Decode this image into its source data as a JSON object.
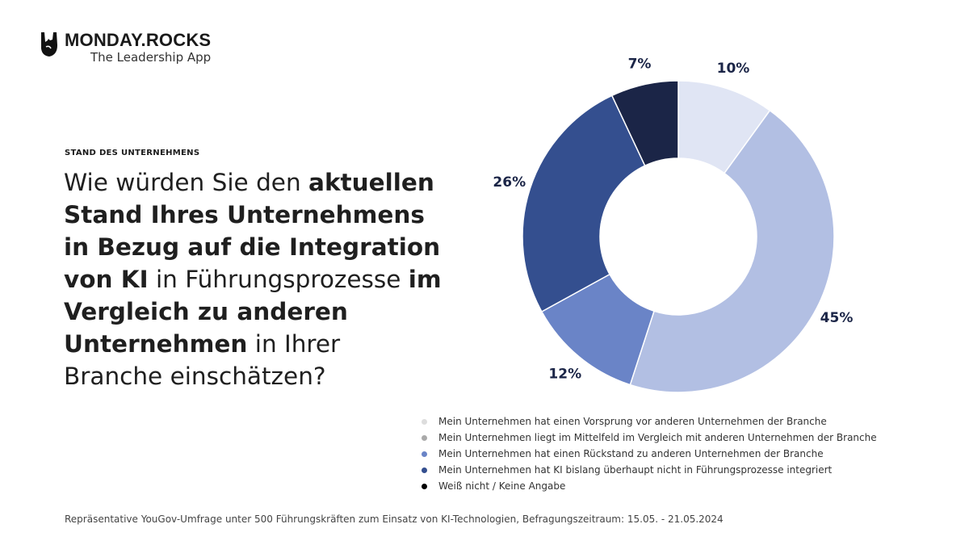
{
  "logo": {
    "title": "MONDAY.ROCKS",
    "subtitle": "The Leadership App",
    "icon": "rock-hand-icon"
  },
  "kicker": "STAND DES UNTERNEHMENS",
  "question": [
    {
      "text": "Wie würden Sie den ",
      "bold": false
    },
    {
      "text": "aktuellen Stand Ihres Unternehmens in Bezug auf die Integration von KI",
      "bold": true
    },
    {
      "text": " in Führungsprozesse ",
      "bold": false
    },
    {
      "text": "im Vergleich zu anderen Unternehmen",
      "bold": true
    },
    {
      "text": " in Ihrer Branche einschätzen?",
      "bold": false
    }
  ],
  "chart_data": {
    "type": "pie",
    "donut": true,
    "start": "top, clockwise",
    "legend_position": "bottom-right",
    "categories": [
      "Mein Unternehmen hat einen Vorsprung vor anderen Unternehmen der Branche",
      "Mein Unternehmen liegt im Mittelfeld im Vergleich mit anderen Unternehmen der Branche",
      "Mein Unternehmen hat einen Rückstand zu anderen Unternehmen der Branche",
      "Mein Unternehmen hat KI bislang überhaupt nicht in Führungsprozesse integriert",
      "Weiß nicht / Keine Angabe"
    ],
    "values": [
      10,
      45,
      12,
      26,
      7
    ],
    "data_labels": [
      "10%",
      "45%",
      "12%",
      "26%",
      "7%"
    ],
    "slice_colors": [
      "#e0e5f4",
      "#b2bfe3",
      "#6a84c7",
      "#344f8f",
      "#1b2547"
    ],
    "legend_dot_colors": [
      "#dddddd",
      "#aaaaaa",
      "#6a84c7",
      "#344f8f",
      "#000000"
    ]
  },
  "footnote": "Repräsentative YouGov-Umfrage unter 500 Führungskräften zum Einsatz von KI-Technologien, Befragungszeitraum: 15.05. - 21.05.2024"
}
